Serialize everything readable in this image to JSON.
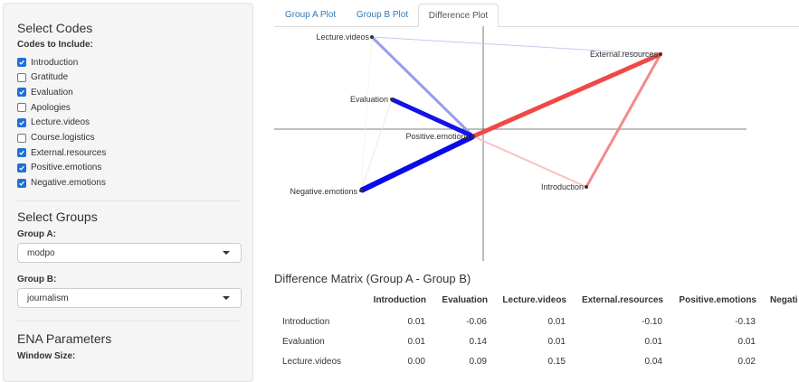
{
  "sidebar": {
    "codes_title": "Select Codes",
    "codes_label": "Codes to Include:",
    "codes": [
      {
        "label": "Introduction",
        "checked": true
      },
      {
        "label": "Gratitude",
        "checked": false
      },
      {
        "label": "Evaluation",
        "checked": true
      },
      {
        "label": "Apologies",
        "checked": false
      },
      {
        "label": "Lecture.videos",
        "checked": true
      },
      {
        "label": "Course.logistics",
        "checked": false
      },
      {
        "label": "External.resources",
        "checked": true
      },
      {
        "label": "Positive.emotions",
        "checked": true
      },
      {
        "label": "Negative.emotions",
        "checked": true
      }
    ],
    "groups_title": "Select Groups",
    "group_a_label": "Group A:",
    "group_a_value": "modpo",
    "group_b_label": "Group B:",
    "group_b_value": "journalism",
    "ena_title": "ENA Parameters",
    "window_label": "Window Size:"
  },
  "tabs": [
    {
      "label": "Group A Plot",
      "active": false
    },
    {
      "label": "Group B Plot",
      "active": false
    },
    {
      "label": "Difference Plot",
      "active": true
    }
  ],
  "plot": {
    "nodes": [
      "Lecture.videos",
      "External.resources",
      "Evaluation",
      "Positive.emotions",
      "Introduction",
      "Negative.emotions"
    ],
    "colors": {
      "group_a": "#ff0000",
      "group_b": "#0000ff"
    }
  },
  "matrix": {
    "title": "Difference Matrix (Group A - Group B)",
    "columns": [
      "Introduction",
      "Evaluation",
      "Lecture.videos",
      "External.resources",
      "Positive.emotions",
      "Negati"
    ],
    "rows": [
      {
        "name": "Introduction",
        "values": [
          "0.01",
          "-0.06",
          "0.01",
          "-0.10",
          "-0.13"
        ]
      },
      {
        "name": "Evaluation",
        "values": [
          "0.01",
          "0.14",
          "0.01",
          "0.01",
          "0.01"
        ]
      },
      {
        "name": "Lecture.videos",
        "values": [
          "0.00",
          "0.09",
          "0.15",
          "0.04",
          "0.02"
        ]
      }
    ]
  }
}
